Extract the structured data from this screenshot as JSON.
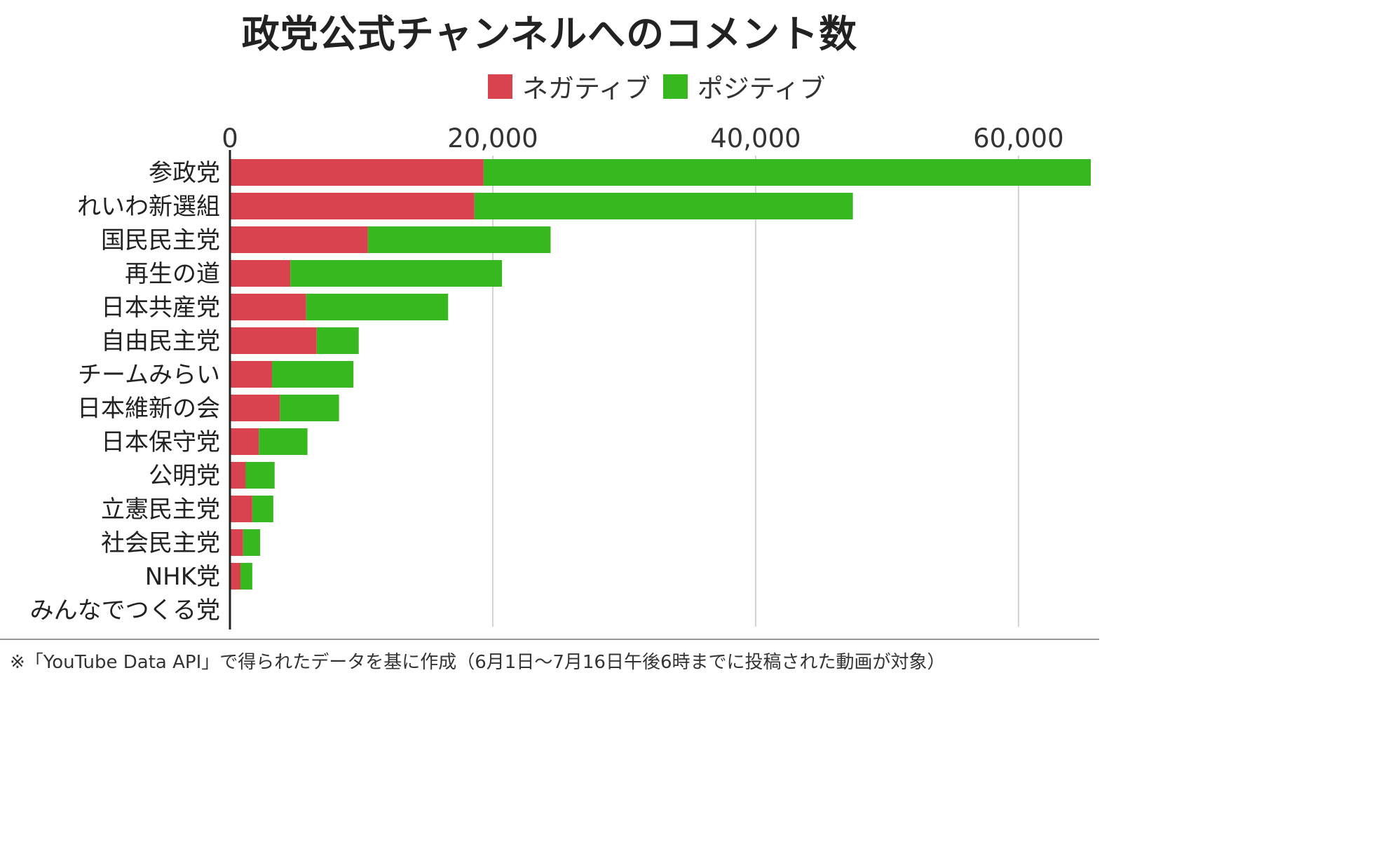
{
  "chart_data": {
    "type": "bar",
    "orientation": "horizontal",
    "stacked": true,
    "title": "政党公式チャンネルへのコメント数",
    "categories": [
      "参政党",
      "れいわ新選組",
      "国民民主党",
      "再生の道",
      "日本共産党",
      "自由民主党",
      "チームみらい",
      "日本維新の会",
      "日本保守党",
      "公明党",
      "立憲民主党",
      "社会民主党",
      "NHK党",
      "みんなでつくる党"
    ],
    "series": [
      {
        "name": "ネガティブ",
        "color": "#d9434f",
        "values": [
          19300,
          18600,
          10500,
          4600,
          5800,
          6600,
          3200,
          3800,
          2200,
          1200,
          1700,
          1000,
          800,
          0
        ]
      },
      {
        "name": "ポジティブ",
        "color": "#37b81f",
        "values": [
          46200,
          28800,
          13900,
          16100,
          10800,
          3200,
          6200,
          4500,
          3700,
          2200,
          1600,
          1300,
          900,
          0
        ]
      }
    ],
    "x_ticks": [
      "0",
      "20,000",
      "40,000",
      "60,000"
    ],
    "x_tick_values": [
      0,
      20000,
      40000,
      60000
    ],
    "xlim": [
      0,
      65500
    ],
    "grid": true,
    "legend_position": "top-right",
    "xlabel": "",
    "ylabel": ""
  },
  "footnote": "※「YouTube Data API」で得られたデータを基に作成（6月1日〜7月16日午後6時までに投稿された動画が対象）"
}
